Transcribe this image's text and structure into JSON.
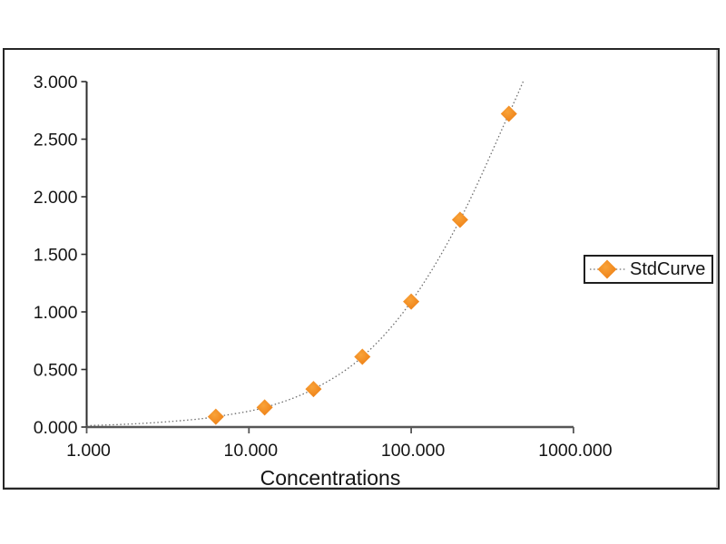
{
  "figure": {
    "background_color": "#ffffff",
    "frame_border_color": "#262626",
    "axis_color": "#3c3c3c",
    "curve_color": "#6e6e6e",
    "marker_color": "#F0871D",
    "marker_color_light": "#F9A339"
  },
  "legend": {
    "label": "StdCurve",
    "marker_icon": "diamond-marker-icon",
    "position": "right-middle"
  },
  "chart_data": {
    "type": "scatter",
    "title": "",
    "xlabel": "Concentrations",
    "ylabel": "",
    "x_scale": "log10",
    "xlim": [
      1,
      1000
    ],
    "ylim": [
      0,
      3
    ],
    "grid": false,
    "x_tick_values": [
      1,
      10,
      100,
      1000
    ],
    "x_tick_labels": [
      "1.000",
      "10.000",
      "100.000",
      "1000.000"
    ],
    "y_tick_values": [
      3.0,
      2.5,
      2.0,
      1.5,
      1.0,
      0.5,
      0.0
    ],
    "y_tick_labels": [
      "3.000",
      "2.500",
      "2.000",
      "1.500",
      "1.000",
      "0.500",
      "0.000"
    ],
    "series": [
      {
        "name": "StdCurve",
        "marker": "diamond",
        "marker_color": "#F0871D",
        "x": [
          6.25,
          12.5,
          25,
          50,
          100,
          200,
          400
        ],
        "y": [
          0.09,
          0.17,
          0.33,
          0.61,
          1.09,
          1.8,
          2.72
        ]
      }
    ],
    "fit_curve": {
      "style": "dotted",
      "color": "#6e6e6e",
      "points": [
        [
          1,
          0.012
        ],
        [
          2,
          0.028
        ],
        [
          4,
          0.058
        ],
        [
          6.25,
          0.09
        ],
        [
          12.5,
          0.17
        ],
        [
          25,
          0.33
        ],
        [
          50,
          0.61
        ],
        [
          100,
          1.09
        ],
        [
          200,
          1.8
        ],
        [
          400,
          2.72
        ],
        [
          493,
          3.01
        ]
      ]
    }
  }
}
